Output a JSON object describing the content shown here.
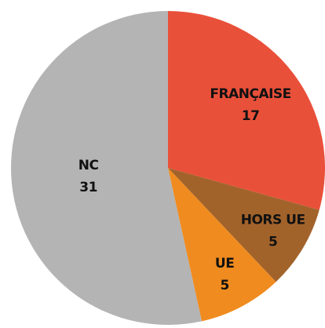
{
  "chart_data": {
    "type": "pie",
    "categories": [
      "FRANÇAISE",
      "HORS UE",
      "UE",
      "NC"
    ],
    "values": [
      17,
      5,
      5,
      31
    ],
    "colors": [
      "#e9503a",
      "#a2632b",
      "#f08b1f",
      "#b4b4b4"
    ]
  }
}
